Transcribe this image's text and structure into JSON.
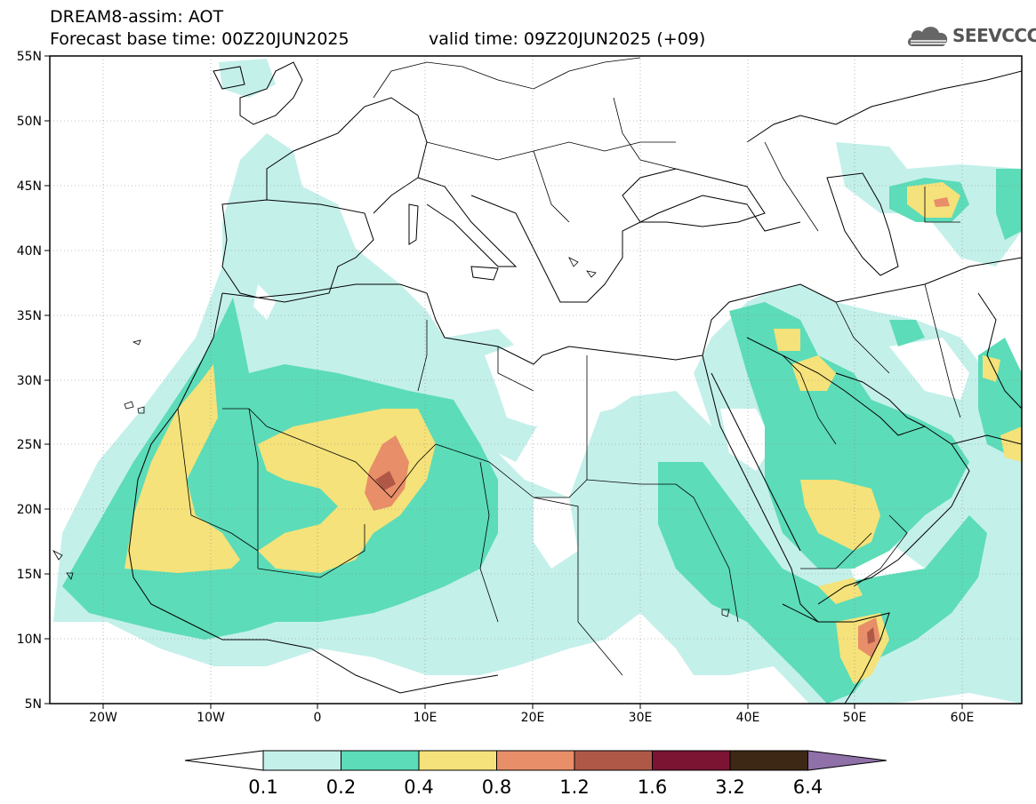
{
  "header": {
    "line1": "DREAM8-assim: AOT",
    "line2": "Forecast base time: 00Z20JUN2025",
    "valid": "valid time: 09Z20JUN2025 (+09)"
  },
  "logo": {
    "text": "SEEVCCC",
    "icon": "cloud-icon"
  },
  "map": {
    "lon_range": [
      -25,
      65
    ],
    "lat_range": [
      5,
      55
    ],
    "x_ticks": [
      "20W",
      "10W",
      "0",
      "10E",
      "20E",
      "30E",
      "40E",
      "50E",
      "60E"
    ],
    "y_ticks": [
      "55N",
      "50N",
      "45N",
      "40N",
      "35N",
      "30N",
      "25N",
      "20N",
      "15N",
      "10N",
      "5N"
    ],
    "grid": true
  },
  "colorbar": {
    "labels": [
      "0.1",
      "0.2",
      "0.4",
      "0.8",
      "1.2",
      "1.6",
      "3.2",
      "6.4"
    ],
    "colors": [
      "#c4f0ea",
      "#5cdcb8",
      "#f5e27a",
      "#e88e68",
      "#b05848",
      "#7a1432",
      "#3c2814",
      "#9070a8"
    ]
  }
}
